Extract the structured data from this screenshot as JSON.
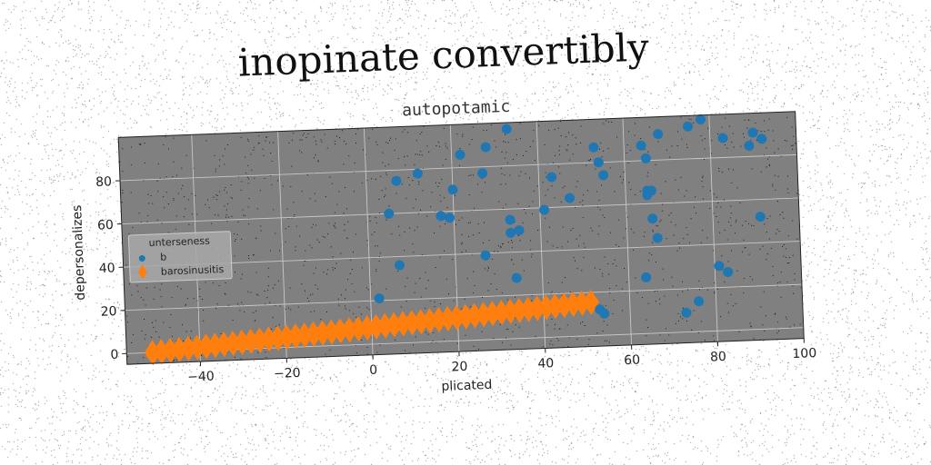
{
  "suptitle": "inopinate convertibly",
  "chart_data": {
    "type": "scatter",
    "title": "autopotamic",
    "xlabel": "plicated",
    "ylabel": "depersonalizes",
    "xlim": [
      -57,
      100
    ],
    "ylim": [
      -5,
      100
    ],
    "xticks": [
      -40,
      -20,
      0,
      20,
      40,
      60,
      80,
      100
    ],
    "yticks": [
      0,
      20,
      40,
      60,
      80
    ],
    "grid": true,
    "background": "#808080",
    "legend": {
      "title": "unterseness",
      "placement": "center-left"
    },
    "series": [
      {
        "name": "b",
        "marker": "circle",
        "color": "#1f77b4",
        "points": [
          [
            5,
            60
          ],
          [
            7,
            36
          ],
          [
            7,
            75
          ],
          [
            2,
            21
          ],
          [
            12,
            78
          ],
          [
            17,
            58
          ],
          [
            19,
            57
          ],
          [
            20,
            70
          ],
          [
            22,
            86
          ],
          [
            27,
            77
          ],
          [
            27,
            39
          ],
          [
            28,
            89
          ],
          [
            33,
            97
          ],
          [
            33,
            55
          ],
          [
            33,
            49
          ],
          [
            34,
            28
          ],
          [
            35,
            50
          ],
          [
            41,
            59
          ],
          [
            43,
            74
          ],
          [
            47,
            64
          ],
          [
            53,
            87
          ],
          [
            54,
            80
          ],
          [
            55,
            74
          ],
          [
            53,
            12
          ],
          [
            54,
            10
          ],
          [
            64,
            26
          ],
          [
            64,
            87
          ],
          [
            65,
            81
          ],
          [
            65,
            66
          ],
          [
            66,
            66
          ],
          [
            65,
            64
          ],
          [
            66,
            53
          ],
          [
            67,
            44
          ],
          [
            68,
            92
          ],
          [
            75,
            95
          ],
          [
            73,
            9
          ],
          [
            76,
            14
          ],
          [
            78,
            98
          ],
          [
            81,
            30
          ],
          [
            83,
            27
          ],
          [
            83,
            89
          ],
          [
            89,
            85
          ],
          [
            90,
            91
          ],
          [
            92,
            88
          ],
          [
            91,
            52
          ]
        ]
      },
      {
        "name": "barosinusitis",
        "marker": "thin_diamond",
        "color": "#ff7f0e",
        "line": {
          "x_start": -51,
          "x_end": 51,
          "y_start": 0,
          "y_end": 15.5,
          "count": 50
        }
      }
    ]
  }
}
